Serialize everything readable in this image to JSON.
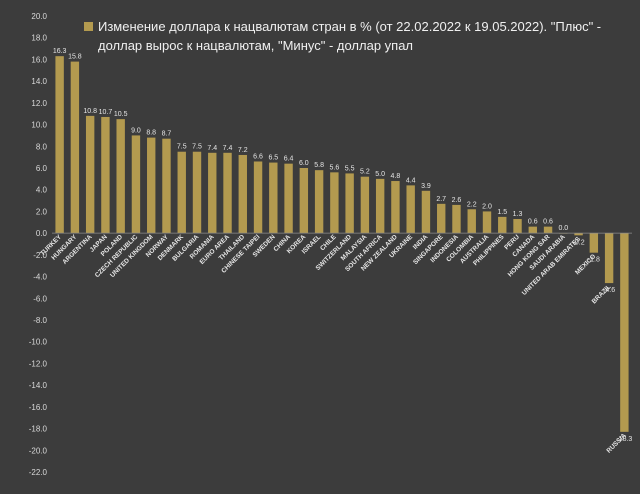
{
  "chart_data": {
    "type": "bar",
    "legend": {
      "position": "top",
      "line1": "Изменение доллара к нацвалютам стран в % (от 22.02.2022 к 19.05.2022). \"Плюс\" -",
      "line2": "доллар вырос к нацвалютам, \"Минус\" - доллар упал"
    },
    "ylim": [
      -22,
      20
    ],
    "ytick_step": 2,
    "grid": false,
    "colors": {
      "background": "#3c3c3c",
      "bar": "#b39a4f",
      "text": "#d9d9d9"
    },
    "categories": [
      "TURKEY",
      "HUNGARY",
      "ARGENTINA",
      "JAPAN",
      "POLAND",
      "CZECH REPUBLIC",
      "UNITED KINGDOM",
      "NORWAY",
      "DENMARK",
      "BULGARIA",
      "ROMANIA",
      "EURO AREA",
      "THAILAND",
      "CHINESE TAIPEI",
      "SWEDEN",
      "CHINA",
      "KOREA",
      "ISRAEL",
      "CHILE",
      "SWITZERLAND",
      "MALAYSIA",
      "SOUTH AFRICA",
      "NEW ZEALAND",
      "UKRAINE",
      "INDIA",
      "SINGAPORE",
      "INDONESIA",
      "COLOMBIA",
      "AUSTRALIA",
      "PHILIPPINES",
      "PERU",
      "CANADA",
      "HONG KONG SAR",
      "SAUDI ARABIA",
      "UNITED ARAB EMIRATES",
      "MEXICO",
      "BRAZIL",
      "RUSSIA"
    ],
    "values": [
      16.3,
      15.8,
      10.8,
      10.7,
      10.5,
      9.0,
      8.8,
      8.7,
      7.5,
      7.5,
      7.4,
      7.4,
      7.2,
      6.6,
      6.5,
      6.4,
      6.0,
      5.8,
      5.6,
      5.5,
      5.2,
      5.0,
      4.8,
      4.4,
      3.9,
      2.7,
      2.6,
      2.2,
      2.0,
      1.5,
      1.3,
      0.6,
      0.6,
      0.0,
      -0.2,
      -1.8,
      -4.6,
      -18.3
    ],
    "value_labels": [
      "16.3",
      "15.8",
      "10.8",
      "10.7",
      "10.5",
      "9.0",
      "8.8",
      "8.7",
      "7.5",
      "7.5",
      "7.4",
      "7.4",
      "7.2",
      "6.6",
      "6.5",
      "6.4",
      "6.0",
      "5.8",
      "5.6",
      "5.5",
      "5.2",
      "5.0",
      "4.8",
      "4.4",
      "3.9",
      "2.7",
      "2.6",
      "2.2",
      "2.0",
      "1.5",
      "1.3",
      "0.6",
      "0.6",
      "0.0",
      "-0.2",
      "-1.8",
      "-4.6",
      "-18.3"
    ]
  }
}
